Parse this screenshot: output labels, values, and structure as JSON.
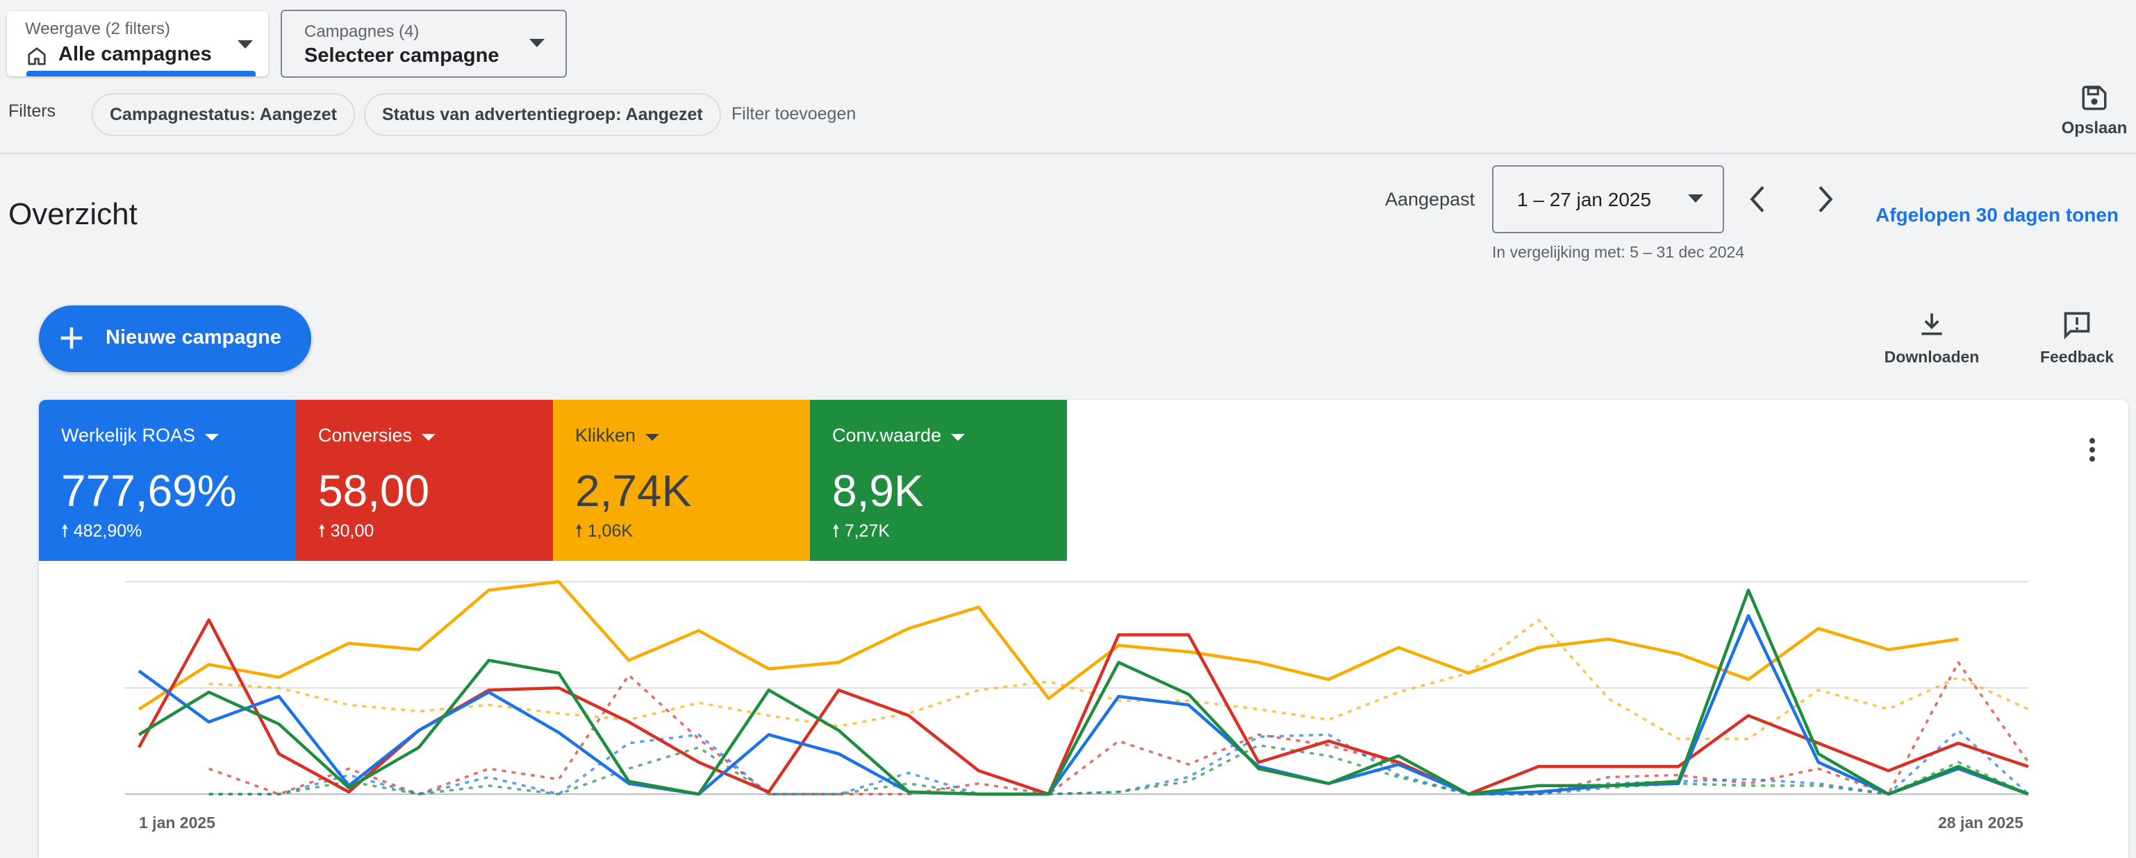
{
  "view_selector": {
    "label": "Weergave (2 filters)",
    "value": "Alle campagnes"
  },
  "campaign_selector": {
    "label": "Campagnes (4)",
    "value": "Selecteer campagne"
  },
  "filters": {
    "label": "Filters",
    "chips": [
      "Campagnestatus: Aangezet",
      "Status van advertentiegroep: Aangezet"
    ],
    "add_label": "Filter toevoegen",
    "save_label": "Opslaan"
  },
  "overview": {
    "title": "Overzicht",
    "range_label": "Aangepast",
    "date_range": "1 – 27 jan 2025",
    "comparison": "In vergelijking met: 5 – 31 dec 2024",
    "last30_link": "Afgelopen 30 dagen tonen"
  },
  "actions": {
    "new_campaign": "Nieuwe campagne",
    "download": "Downloaden",
    "feedback": "Feedback"
  },
  "metrics": [
    {
      "name": "Werkelijk ROAS",
      "value": "777,69%",
      "delta": "482,90%",
      "color": "#1a73e8"
    },
    {
      "name": "Conversies",
      "value": "58,00",
      "delta": "30,00",
      "color": "#d93025"
    },
    {
      "name": "Klikken",
      "value": "2,74K",
      "delta": "1,06K",
      "color": "#f9ab00"
    },
    {
      "name": "Conv.waarde",
      "value": "8,9K",
      "delta": "7,27K",
      "color": "#1e8e3e"
    }
  ],
  "chart_data": {
    "type": "line",
    "x_start_label": "1 jan 2025",
    "x_end_label": "28 jan 2025",
    "x": [
      1,
      2,
      3,
      4,
      5,
      6,
      7,
      8,
      9,
      10,
      11,
      12,
      13,
      14,
      15,
      16,
      17,
      18,
      19,
      20,
      21,
      22,
      23,
      24,
      25,
      26,
      27,
      28
    ],
    "ylim": [
      0,
      100
    ],
    "grid": true,
    "series": [
      {
        "metric": "Klikken",
        "color": "#f9ab00",
        "style": "solid",
        "values": [
          40,
          61,
          55,
          71,
          68,
          96,
          100,
          63,
          77,
          59,
          62,
          78,
          88,
          45,
          70,
          67,
          62,
          54,
          69,
          57,
          69,
          73,
          66,
          54,
          78,
          68,
          73,
          null
        ]
      },
      {
        "metric": "Klikken",
        "color": "#f9ab00",
        "style": "dashed",
        "values": [
          null,
          52,
          50,
          42,
          39,
          42,
          38,
          35,
          43,
          37,
          32,
          38,
          49,
          53,
          44,
          44,
          40,
          35,
          48,
          57,
          82,
          45,
          26,
          26,
          49,
          40,
          55,
          40
        ]
      },
      {
        "metric": "Conversies",
        "color": "#d93025",
        "style": "solid",
        "values": [
          22,
          82,
          19,
          1,
          30,
          49,
          50,
          34,
          15,
          1,
          49,
          37,
          11,
          0,
          75,
          75,
          15,
          25,
          15,
          0,
          13,
          13,
          13,
          37,
          24,
          11,
          24,
          13
        ]
      },
      {
        "metric": "Conversies",
        "color": "#d93025",
        "style": "dashed",
        "values": [
          null,
          12,
          0,
          12,
          0,
          12,
          7,
          56,
          26,
          0,
          0,
          0,
          5,
          0,
          25,
          14,
          28,
          23,
          14,
          0,
          0,
          8,
          9,
          5,
          12,
          0,
          62,
          15
        ]
      },
      {
        "metric": "Werkelijk ROAS",
        "color": "#1a73e8",
        "style": "solid",
        "values": [
          58,
          34,
          46,
          4,
          30,
          48,
          29,
          5,
          0,
          28,
          19,
          1,
          0,
          0,
          46,
          42,
          13,
          5,
          14,
          0,
          1,
          4,
          5,
          84,
          15,
          0,
          12,
          0
        ]
      },
      {
        "metric": "Werkelijk ROAS",
        "color": "#1a73e8",
        "style": "dashed",
        "values": [
          null,
          0,
          0,
          9,
          0,
          8,
          0,
          24,
          28,
          0,
          0,
          10,
          0,
          0,
          1,
          8,
          27,
          28,
          9,
          0,
          0,
          5,
          6,
          7,
          5,
          0,
          30,
          0
        ]
      },
      {
        "metric": "Conv.waarde",
        "color": "#1e8e3e",
        "style": "solid",
        "values": [
          28,
          48,
          33,
          3,
          22,
          63,
          57,
          6,
          0,
          49,
          30,
          1,
          0,
          0,
          62,
          47,
          12,
          5,
          18,
          0,
          4,
          4,
          6,
          96,
          19,
          0,
          13,
          0
        ]
      },
      {
        "metric": "Conv.waarde",
        "color": "#1e8e3e",
        "style": "dashed",
        "values": [
          null,
          0,
          0,
          6,
          0,
          4,
          0,
          12,
          22,
          0,
          0,
          5,
          0,
          0,
          1,
          6,
          23,
          18,
          8,
          0,
          0,
          3,
          5,
          4,
          4,
          0,
          15,
          0
        ]
      }
    ]
  }
}
